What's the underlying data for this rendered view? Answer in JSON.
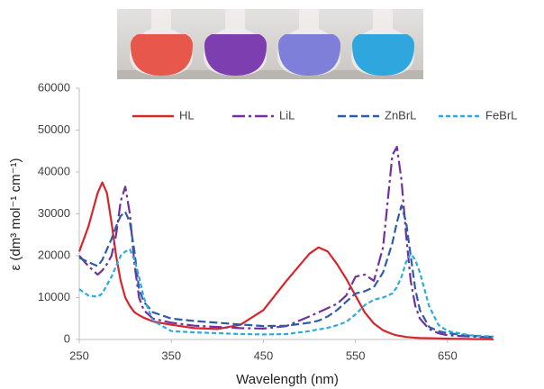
{
  "chart_data": {
    "type": "line",
    "x_label": "Wavelength (nm)",
    "y_label": "ε (dm³ mol⁻¹ cm⁻¹)",
    "x": [
      250,
      260,
      270,
      275,
      280,
      285,
      290,
      295,
      300,
      305,
      310,
      315,
      320,
      330,
      350,
      375,
      400,
      425,
      450,
      475,
      500,
      510,
      520,
      530,
      540,
      550,
      560,
      570,
      580,
      590,
      595,
      600,
      605,
      610,
      615,
      620,
      630,
      640,
      650,
      675,
      700
    ],
    "series": [
      {
        "name": "HL",
        "color": "#d7262b",
        "dash": "solid",
        "values": [
          21000,
          27000,
          35000,
          37500,
          35000,
          28000,
          20000,
          14000,
          10000,
          8000,
          6500,
          5800,
          5200,
          4300,
          3500,
          2700,
          2500,
          3500,
          7000,
          14000,
          20500,
          22000,
          21000,
          18000,
          14500,
          10500,
          6500,
          3800,
          2200,
          1300,
          1000,
          800,
          600,
          500,
          400,
          350,
          300,
          250,
          200,
          100,
          50
        ]
      },
      {
        "name": "LiL",
        "color": "#7030a0",
        "dash": "dash-dot",
        "values": [
          20000,
          17500,
          15500,
          16500,
          18000,
          20000,
          25000,
          33000,
          36500,
          30000,
          18000,
          10000,
          7000,
          5000,
          4000,
          3300,
          3000,
          2700,
          2600,
          3200,
          5500,
          6500,
          7500,
          8500,
          10500,
          15000,
          15500,
          14000,
          22000,
          44000,
          46000,
          38000,
          25000,
          14000,
          8000,
          5000,
          2500,
          1500,
          1000,
          700,
          500
        ]
      },
      {
        "name": "ZnBrL",
        "color": "#2e5da8",
        "dash": "dash",
        "values": [
          19500,
          18500,
          17500,
          19000,
          21500,
          24000,
          27000,
          29500,
          30500,
          28000,
          21000,
          12000,
          9000,
          6500,
          5000,
          4400,
          4000,
          3600,
          3200,
          3300,
          4000,
          4500,
          5500,
          7000,
          9000,
          11000,
          11500,
          12500,
          16000,
          23000,
          28000,
          32000,
          28000,
          20000,
          12000,
          7000,
          3000,
          2000,
          1500,
          900,
          600
        ]
      },
      {
        "name": "FeBrL",
        "color": "#29abe2",
        "dash": "short-dash",
        "values": [
          12000,
          10500,
          10200,
          11000,
          13000,
          15000,
          17500,
          20000,
          21000,
          21500,
          19000,
          15000,
          10000,
          4500,
          2000,
          1700,
          1500,
          1300,
          1200,
          1300,
          2000,
          2400,
          2800,
          3400,
          4200,
          6000,
          8200,
          9500,
          10000,
          11000,
          12500,
          15000,
          18500,
          20500,
          19000,
          16000,
          8000,
          3500,
          2000,
          1000,
          700
        ]
      }
    ],
    "xlim": [
      250,
      700
    ],
    "xticks": [
      250,
      350,
      450,
      550,
      650
    ],
    "ylim": [
      0,
      60000
    ],
    "yticks": [
      0,
      10000,
      20000,
      30000,
      40000,
      50000,
      60000
    ],
    "grid": false,
    "legend": "top"
  }
}
